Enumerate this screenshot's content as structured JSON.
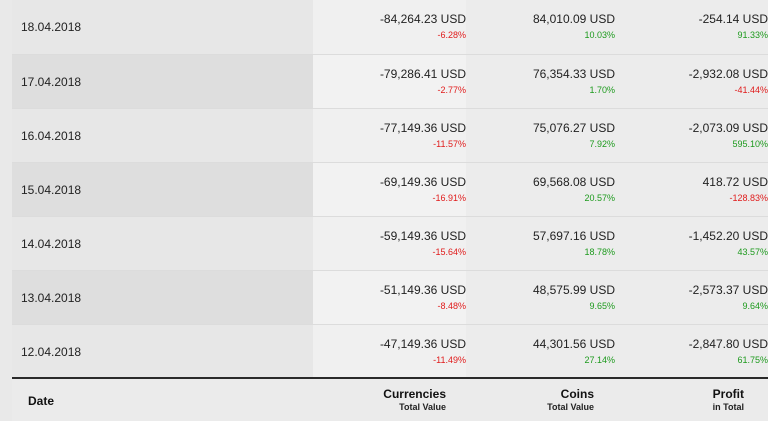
{
  "columns": {
    "date": "Date",
    "currencies": {
      "title": "Currencies",
      "sub": "Total Value"
    },
    "coins": {
      "title": "Coins",
      "sub": "Total Value"
    },
    "profit": {
      "title": "Profit",
      "sub": "in Total"
    }
  },
  "rows": [
    {
      "date": "18.04.2018",
      "cur": "-84,264.23 USD",
      "cur_pct": "-6.28%",
      "coin": "84,010.09 USD",
      "coin_pct": "10.03%",
      "profit": "-254.14 USD",
      "profit_pct": "91.33%"
    },
    {
      "date": "17.04.2018",
      "cur": "-79,286.41 USD",
      "cur_pct": "-2.77%",
      "coin": "76,354.33 USD",
      "coin_pct": "1.70%",
      "profit": "-2,932.08 USD",
      "profit_pct": "-41.44%"
    },
    {
      "date": "16.04.2018",
      "cur": "-77,149.36 USD",
      "cur_pct": "-11.57%",
      "coin": "75,076.27 USD",
      "coin_pct": "7.92%",
      "profit": "-2,073.09 USD",
      "profit_pct": "595.10%"
    },
    {
      "date": "15.04.2018",
      "cur": "-69,149.36 USD",
      "cur_pct": "-16.91%",
      "coin": "69,568.08 USD",
      "coin_pct": "20.57%",
      "profit": "418.72 USD",
      "profit_pct": "-128.83%"
    },
    {
      "date": "14.04.2018",
      "cur": "-59,149.36 USD",
      "cur_pct": "-15.64%",
      "coin": "57,697.16 USD",
      "coin_pct": "18.78%",
      "profit": "-1,452.20 USD",
      "profit_pct": "43.57%"
    },
    {
      "date": "13.04.2018",
      "cur": "-51,149.36 USD",
      "cur_pct": "-8.48%",
      "coin": "48,575.99 USD",
      "coin_pct": "9.65%",
      "profit": "-2,573.37 USD",
      "profit_pct": "9.64%"
    },
    {
      "date": "12.04.2018",
      "cur": "-47,149.36 USD",
      "cur_pct": "-11.49%",
      "coin": "44,301.56 USD",
      "coin_pct": "27.14%",
      "profit": "-2,847.80 USD",
      "profit_pct": "61.75%"
    }
  ],
  "colors": {
    "negative": "#e01b1b",
    "positive": "#1d9a1d"
  }
}
